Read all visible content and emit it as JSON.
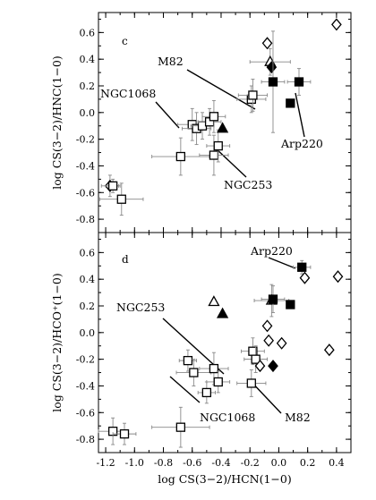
{
  "chart_data": {
    "type": "scatter",
    "xlabel": "log CS(3−2)/HCN(1−0)",
    "xlim": [
      -1.25,
      0.5
    ],
    "xticks": [
      "-1.2",
      "-1.0",
      "-0.8",
      "-0.6",
      "-0.4",
      "-0.2",
      "0.0",
      "0.2",
      "0.4"
    ],
    "panels": [
      {
        "label": "c",
        "ylabel": "log CS(3−2)/HNC(1−0)",
        "ylim": [
          -0.9,
          0.75
        ],
        "yticks": [
          "0.6",
          "0.4",
          "0.2",
          "0.0",
          "-0.2",
          "-0.4",
          "-0.6",
          "-0.8"
        ],
        "points": [
          {
            "x": -1.17,
            "y": -0.55,
            "m": "open-diamond",
            "xe": 0.06,
            "ye": 0.08
          },
          {
            "x": -1.15,
            "y": -0.55,
            "m": "open-square",
            "xe": 0.05,
            "ye": 0.05
          },
          {
            "x": -1.09,
            "y": -0.65,
            "m": "open-square",
            "xe": 0.15,
            "ye": 0.12
          },
          {
            "x": -0.68,
            "y": -0.33,
            "m": "open-square",
            "xe": 0.2,
            "ye": 0.14
          },
          {
            "x": -0.6,
            "y": -0.09,
            "m": "open-square",
            "xe": 0.1,
            "ye": 0.12
          },
          {
            "x": -0.57,
            "y": -0.12,
            "m": "open-square",
            "xe": 0.1,
            "ye": 0.12
          },
          {
            "x": -0.53,
            "y": -0.1,
            "m": "open-square",
            "xe": 0.08,
            "ye": 0.1
          },
          {
            "x": -0.48,
            "y": -0.07,
            "m": "open-square",
            "xe": 0.08,
            "ye": 0.1
          },
          {
            "x": -0.45,
            "y": -0.03,
            "m": "open-square",
            "xe": 0.08,
            "ye": 0.12
          },
          {
            "x": -0.45,
            "y": -0.32,
            "m": "open-square",
            "xe": 0.1,
            "ye": 0.15
          },
          {
            "x": -0.42,
            "y": -0.25,
            "m": "open-square",
            "xe": 0.08,
            "ye": 0.12
          },
          {
            "x": -0.39,
            "y": -0.12,
            "m": "filled-triangle"
          },
          {
            "x": -0.19,
            "y": 0.1,
            "m": "open-square",
            "xe": 0.1,
            "ye": 0.1
          },
          {
            "x": -0.18,
            "y": 0.13,
            "m": "open-square",
            "xe": 0.1,
            "ye": 0.12
          },
          {
            "x": -0.08,
            "y": 0.52,
            "m": "open-diamond"
          },
          {
            "x": -0.06,
            "y": 0.38,
            "m": "open-triangle",
            "xe": 0.14,
            "ye": 0.1
          },
          {
            "x": -0.05,
            "y": 0.34,
            "m": "filled-diamond"
          },
          {
            "x": -0.04,
            "y": 0.23,
            "m": "filled-square",
            "xe": 0.08,
            "ye": 0.38
          },
          {
            "x": 0.08,
            "y": 0.07,
            "m": "filled-square"
          },
          {
            "x": 0.14,
            "y": 0.23,
            "m": "filled-square",
            "xe": 0.08,
            "ye": 0.1
          },
          {
            "x": 0.4,
            "y": 0.66,
            "m": "open-diamond"
          }
        ],
        "annotations": [
          {
            "text": "M82",
            "x": -0.62,
            "y": 0.36
          },
          {
            "text": "NGC1068",
            "x": -0.94,
            "y": 0.1
          },
          {
            "text": "NGC253",
            "x": -0.31,
            "y": -0.43
          },
          {
            "text": "Arp220",
            "x": 0.08,
            "y": -0.16
          }
        ]
      },
      {
        "label": "d",
        "ylabel": "log CS(3−2)/HCO⁺(1−0)",
        "ylim": [
          -0.9,
          0.75
        ],
        "yticks": [
          "0.6",
          "0.4",
          "0.2",
          "0.0",
          "-0.2",
          "-0.4",
          "-0.6",
          "-0.8"
        ],
        "points": [
          {
            "x": -1.15,
            "y": -0.74,
            "m": "open-square",
            "xe": 0.1,
            "ye": 0.1
          },
          {
            "x": -1.07,
            "y": -0.76,
            "m": "open-square",
            "xe": 0.08,
            "ye": 0.08
          },
          {
            "x": -0.68,
            "y": -0.71,
            "m": "open-square",
            "xe": 0.2,
            "ye": 0.15
          },
          {
            "x": -0.63,
            "y": -0.21,
            "m": "open-square",
            "xe": 0.06,
            "ye": 0.08
          },
          {
            "x": -0.59,
            "y": -0.3,
            "m": "open-square",
            "xe": 0.12,
            "ye": 0.1
          },
          {
            "x": -0.5,
            "y": -0.45,
            "m": "open-square",
            "xe": 0.06,
            "ye": 0.08
          },
          {
            "x": -0.45,
            "y": -0.27,
            "m": "open-square",
            "xe": 0.1,
            "ye": 0.12
          },
          {
            "x": -0.42,
            "y": -0.37,
            "m": "open-square",
            "xe": 0.08,
            "ye": 0.08
          },
          {
            "x": -0.45,
            "y": 0.23,
            "m": "open-triangle"
          },
          {
            "x": -0.39,
            "y": 0.14,
            "m": "filled-triangle"
          },
          {
            "x": -0.19,
            "y": -0.38,
            "m": "open-square",
            "xe": 0.1,
            "ye": 0.1
          },
          {
            "x": -0.18,
            "y": -0.14,
            "m": "open-square",
            "xe": 0.08,
            "ye": 0.1
          },
          {
            "x": -0.16,
            "y": -0.2,
            "m": "open-square",
            "xe": 0.08,
            "ye": 0.1
          },
          {
            "x": -0.13,
            "y": -0.25,
            "m": "open-diamond"
          },
          {
            "x": -0.08,
            "y": 0.05,
            "m": "open-diamond"
          },
          {
            "x": -0.07,
            "y": -0.06,
            "m": "open-diamond"
          },
          {
            "x": -0.05,
            "y": 0.24,
            "m": "open-triangle",
            "xe": 0.12,
            "ye": 0.12
          },
          {
            "x": -0.04,
            "y": 0.25,
            "m": "filled-square",
            "xe": 0.08,
            "ye": 0.1
          },
          {
            "x": -0.04,
            "y": -0.25,
            "m": "filled-diamond"
          },
          {
            "x": 0.02,
            "y": -0.08,
            "m": "open-diamond"
          },
          {
            "x": 0.08,
            "y": 0.21,
            "m": "filled-square"
          },
          {
            "x": 0.16,
            "y": 0.49,
            "m": "filled-square",
            "xe": 0.06,
            "ye": 0.05
          },
          {
            "x": 0.18,
            "y": 0.41,
            "m": "open-diamond"
          },
          {
            "x": 0.35,
            "y": -0.13,
            "m": "open-diamond"
          },
          {
            "x": 0.41,
            "y": 0.42,
            "m": "open-diamond"
          }
        ],
        "annotations": [
          {
            "text": "Arp220",
            "x": -0.11,
            "y": 0.6
          },
          {
            "text": "NGC253",
            "x": -0.87,
            "y": 0.24
          },
          {
            "text": "NGC1068",
            "x": -0.38,
            "y": -0.74
          },
          {
            "text": "M82",
            "x": 0.0,
            "y": -0.74
          }
        ]
      }
    ]
  }
}
